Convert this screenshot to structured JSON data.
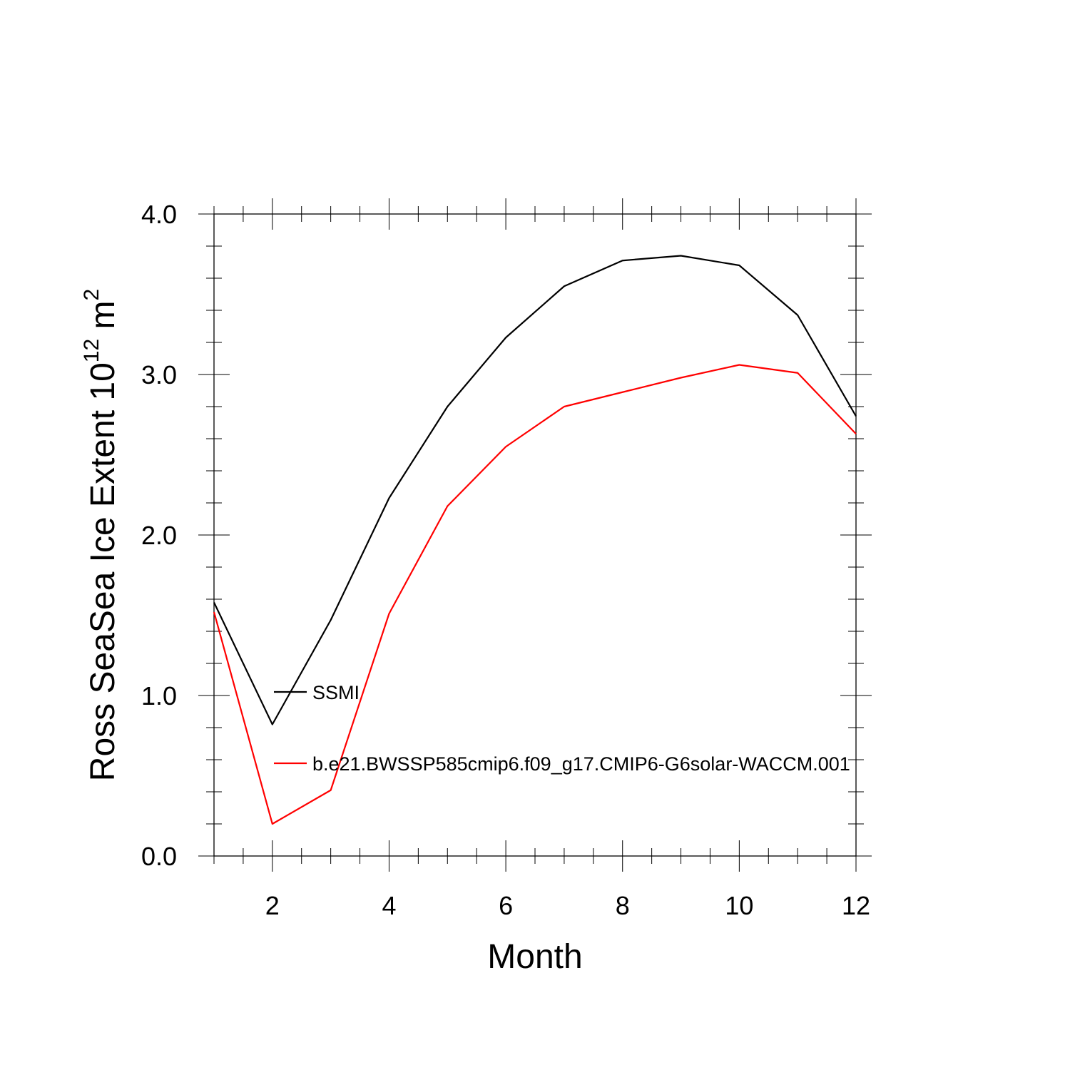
{
  "chart_data": {
    "type": "line",
    "title": "",
    "xlabel": "Month",
    "ylabel_parts": {
      "base": "Ross SeaSea Ice Extent 10",
      "exp1": "12",
      "unit": " m",
      "exp2": "2"
    },
    "xlim": [
      1,
      12
    ],
    "ylim": [
      0.0,
      4.0
    ],
    "x_ticks": [
      2,
      4,
      6,
      8,
      10,
      12
    ],
    "x_tick_labels": [
      "2",
      "4",
      "6",
      "8",
      "10",
      "12"
    ],
    "y_ticks": [
      0.0,
      1.0,
      2.0,
      3.0,
      4.0
    ],
    "y_tick_labels": [
      "0.0",
      "1.0",
      "2.0",
      "3.0",
      "4.0"
    ],
    "grid": false,
    "legend_position": "inside-left",
    "x": [
      1,
      2,
      3,
      4,
      5,
      6,
      7,
      8,
      9,
      10,
      11,
      12
    ],
    "series": [
      {
        "name": "SSMI",
        "color": "#000000",
        "values": [
          1.58,
          0.82,
          1.47,
          2.23,
          2.8,
          3.23,
          3.55,
          3.71,
          3.74,
          3.68,
          3.37,
          2.74
        ]
      },
      {
        "name": "b.e21.BWSSP585cmip6.f09_g17.CMIP6-G6solar-WACCM.001",
        "color": "#ff0000",
        "values": [
          1.52,
          0.2,
          0.41,
          1.51,
          2.18,
          2.55,
          2.8,
          2.89,
          2.98,
          3.06,
          3.01,
          2.63
        ]
      }
    ]
  }
}
